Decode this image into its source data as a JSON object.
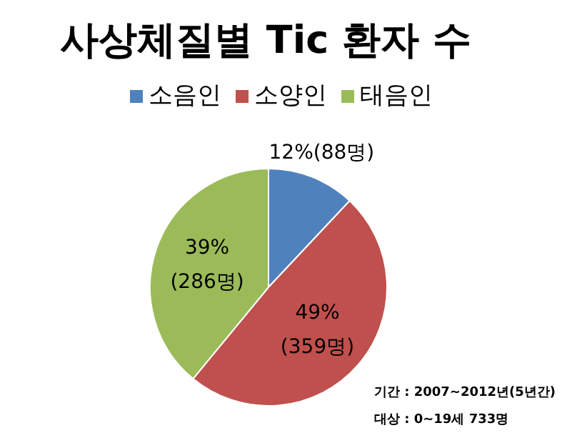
{
  "chart_data": {
    "type": "pie",
    "title": "사상체질별 Tic 환자 수",
    "categories": [
      "소음인",
      "소양인",
      "태음인"
    ],
    "values": [
      88,
      359,
      286
    ],
    "colors": [
      "#4f81bd",
      "#c0504d",
      "#9bbb59"
    ],
    "value_labels": [
      "12%(88명)",
      "49%\n(359명)",
      "39%\n(286명)"
    ],
    "legend": "top",
    "annotations": [
      "기간 : 2007~2012년(5년간)",
      "대상 : 0~19세 733명"
    ]
  }
}
